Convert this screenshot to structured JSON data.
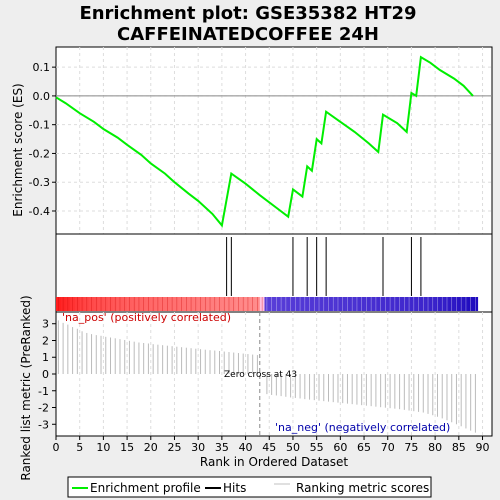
{
  "chart_data": [
    {
      "type": "line",
      "title_line1": "Enrichment plot: GSE35382 HT29",
      "title_line2": "CAFFEINATEDCOFFEE 24H",
      "ylabel": "Enrichment score (ES)",
      "xlim": [
        0,
        92
      ],
      "ylim": [
        -0.48,
        0.17
      ],
      "yticks": [
        0.1,
        0.0,
        -0.1,
        -0.2,
        -0.3,
        -0.4
      ],
      "ytick_labels": [
        "0.1",
        "0.0",
        "-0.1",
        "-0.2",
        "-0.3",
        "-0.4"
      ],
      "grid": true,
      "color": "#00ee00",
      "points": [
        [
          0,
          -0.005
        ],
        [
          2,
          -0.025
        ],
        [
          5,
          -0.06
        ],
        [
          8,
          -0.09
        ],
        [
          10,
          -0.115
        ],
        [
          13,
          -0.145
        ],
        [
          15,
          -0.17
        ],
        [
          18,
          -0.205
        ],
        [
          20,
          -0.235
        ],
        [
          23,
          -0.27
        ],
        [
          25,
          -0.3
        ],
        [
          28,
          -0.34
        ],
        [
          30,
          -0.365
        ],
        [
          33,
          -0.41
        ],
        [
          35,
          -0.45
        ],
        [
          37,
          -0.27
        ],
        [
          40,
          -0.305
        ],
        [
          43,
          -0.345
        ],
        [
          47,
          -0.395
        ],
        [
          49,
          -0.42
        ],
        [
          50,
          -0.325
        ],
        [
          52,
          -0.35
        ],
        [
          53,
          -0.245
        ],
        [
          54,
          -0.26
        ],
        [
          55,
          -0.15
        ],
        [
          56,
          -0.165
        ],
        [
          57,
          -0.055
        ],
        [
          60,
          -0.09
        ],
        [
          63,
          -0.125
        ],
        [
          66,
          -0.165
        ],
        [
          68,
          -0.195
        ],
        [
          69,
          -0.065
        ],
        [
          72,
          -0.095
        ],
        [
          74,
          -0.125
        ],
        [
          75,
          0.01
        ],
        [
          76,
          0.0
        ],
        [
          77,
          0.135
        ],
        [
          79,
          0.115
        ],
        [
          81,
          0.09
        ],
        [
          84,
          0.06
        ],
        [
          86,
          0.035
        ],
        [
          88,
          0.0
        ]
      ]
    },
    {
      "type": "scatter",
      "name": "Hits",
      "hit_positions": [
        36,
        37,
        50,
        53,
        55,
        57,
        69,
        75,
        77
      ]
    },
    {
      "type": "bar",
      "ylabel": "Ranked list metric (PreRanked)",
      "xlabel": "Rank in Ordered Dataset",
      "xlim": [
        0,
        92
      ],
      "ylim": [
        -3.7,
        3.7
      ],
      "xticks": [
        0,
        5,
        10,
        15,
        20,
        25,
        30,
        35,
        40,
        45,
        50,
        55,
        60,
        65,
        70,
        75,
        80,
        85,
        90
      ],
      "yticks": [
        3,
        2,
        1,
        0,
        -1,
        -2,
        -3
      ],
      "pos_label": "'na_pos' (positively correlated)",
      "neg_label": "'na_neg' (negatively correlated)",
      "zero_cross_label": "Zero cross at 43",
      "zero_cross": 43,
      "values": [
        3.2,
        3.05,
        2.95,
        2.8,
        2.7,
        2.55,
        2.45,
        2.38,
        2.32,
        2.28,
        2.22,
        2.18,
        2.13,
        2.08,
        2.03,
        1.98,
        1.93,
        1.88,
        1.85,
        1.82,
        1.78,
        1.75,
        1.72,
        1.69,
        1.66,
        1.63,
        1.6,
        1.57,
        1.54,
        1.51,
        1.48,
        1.45,
        1.42,
        1.4,
        1.37,
        1.34,
        1.31,
        1.28,
        1.25,
        1.22,
        1.19,
        1.16,
        1.13,
        0.05,
        -1.2,
        -1.25,
        -1.28,
        -1.32,
        -1.36,
        -1.4,
        -1.43,
        -1.46,
        -1.5,
        -1.53,
        -1.56,
        -1.59,
        -1.62,
        -1.65,
        -1.68,
        -1.71,
        -1.74,
        -1.77,
        -1.8,
        -1.83,
        -1.86,
        -1.89,
        -1.92,
        -1.95,
        -1.98,
        -2.01,
        -2.04,
        -2.07,
        -2.1,
        -2.14,
        -2.18,
        -2.22,
        -2.26,
        -2.3,
        -2.38,
        -2.46,
        -2.55,
        -2.65,
        -2.76,
        -2.88,
        -3.0,
        -3.12,
        -3.25,
        -3.38,
        -3.5
      ]
    }
  ],
  "legend": {
    "items": [
      {
        "label": "Enrichment profile",
        "color": "#00ee00"
      },
      {
        "label": "Hits",
        "color": "#000000"
      },
      {
        "label": "Ranking metric scores",
        "color": "#c0c0c0"
      }
    ]
  }
}
